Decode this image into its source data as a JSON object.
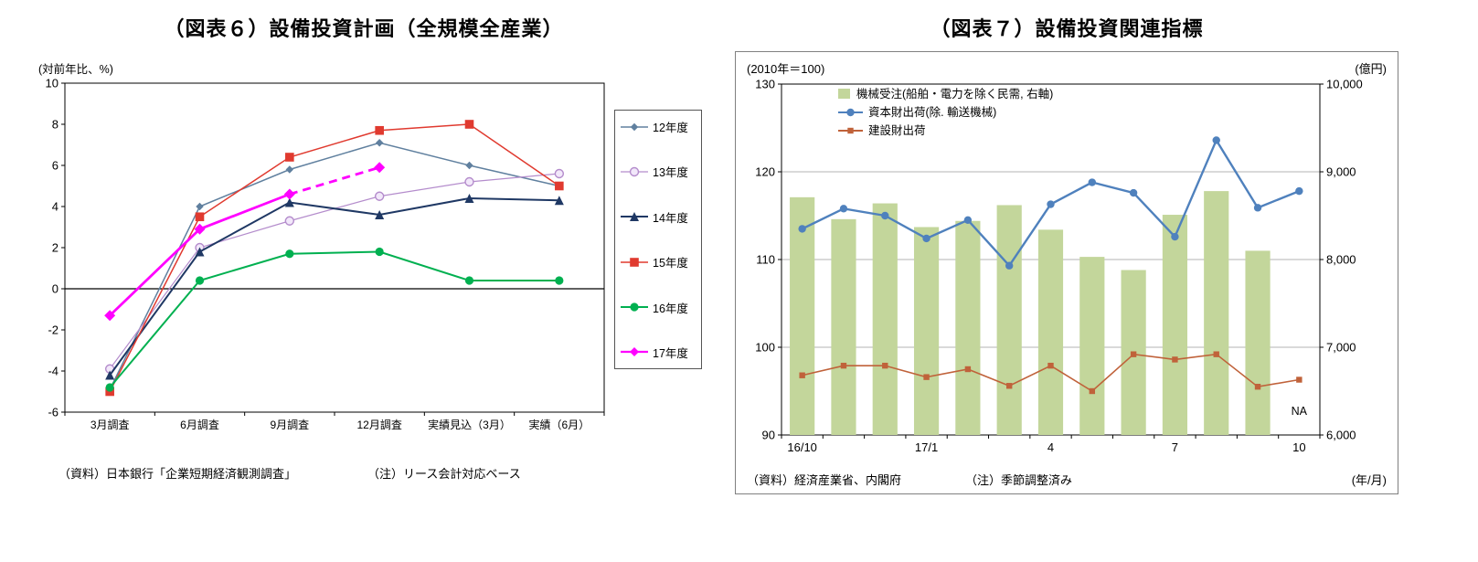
{
  "chart_data": [
    {
      "id": "figure6",
      "type": "line",
      "title": "（図表６）設備投資計画（全規模全産業）",
      "y_axis_label": "(対前年比、%)",
      "categories": [
        "3月調査",
        "6月調査",
        "9月調査",
        "12月調査",
        "実績見込（3月）",
        "実績（6月）"
      ],
      "ylim": [
        -6,
        10
      ],
      "ytick_step": 2,
      "grid": false,
      "legend_position": "right",
      "series": [
        {
          "name": "12年度",
          "color": "#60809f",
          "marker": "diamond",
          "marker_size": 4.2,
          "line_width": 1.5,
          "values": [
            -4.9,
            4.0,
            5.8,
            7.1,
            6.0,
            5.0
          ]
        },
        {
          "name": "13年度",
          "color": "#b48ccc",
          "marker": "circle-open",
          "marker_size": 4.5,
          "line_width": 1.2,
          "values": [
            -3.9,
            2.0,
            3.3,
            4.5,
            5.2,
            5.6
          ]
        },
        {
          "name": "14年度",
          "color": "#1f3864",
          "marker": "triangle",
          "marker_size": 5,
          "line_width": 2,
          "values": [
            -4.2,
            1.8,
            4.2,
            3.6,
            4.4,
            4.3
          ]
        },
        {
          "name": "15年度",
          "color": "#e03a2f",
          "marker": "square",
          "marker_size": 4.8,
          "line_width": 1.5,
          "values": [
            -5.0,
            3.5,
            6.4,
            7.7,
            8.0,
            5.0
          ]
        },
        {
          "name": "16年度",
          "color": "#00b050",
          "marker": "circle",
          "marker_size": 4.6,
          "line_width": 2,
          "values": [
            -4.8,
            0.4,
            1.7,
            1.8,
            0.4,
            0.4
          ]
        },
        {
          "name": "17年度",
          "color": "#ff00ff",
          "marker": "diamond",
          "marker_size": 6,
          "line_width": 2.8,
          "dash_from": 2,
          "values": [
            -1.3,
            2.9,
            4.6,
            5.9,
            null,
            null
          ]
        }
      ],
      "source": "（資料）日本銀行「企業短期経済観測調査」",
      "note": "（注）リース会計対応ベース"
    },
    {
      "id": "figure7",
      "type": "combo",
      "title": "（図表７）設備投資関連指標",
      "left_axis_label": "(2010年＝100)",
      "right_axis_label": "(億円)",
      "x_axis_label": "(年/月)",
      "left_ylim": [
        90,
        130
      ],
      "right_ylim": [
        6000,
        10000
      ],
      "left_ticks": [
        90,
        100,
        110,
        120,
        130
      ],
      "right_ticks": [
        "6,000",
        "7,000",
        "8,000",
        "9,000",
        "10,000"
      ],
      "grid": true,
      "legend_position": "top-left-inside",
      "x_tick_labels": [
        {
          "index": 0,
          "label": "16/10"
        },
        {
          "index": 3,
          "label": "17/1"
        },
        {
          "index": 6,
          "label": "4"
        },
        {
          "index": 9,
          "label": "7"
        },
        {
          "index": 12,
          "label": "10"
        }
      ],
      "na_label": "NA",
      "bars": {
        "name": "機械受注(船舶・電力を除く民需, 右軸)",
        "color": "#c3d69b",
        "axis": "right",
        "values": [
          8710,
          8460,
          8640,
          8370,
          8440,
          8620,
          8340,
          8030,
          7880,
          8510,
          8780,
          8100,
          null
        ]
      },
      "lines": [
        {
          "name": "資本財出荷(除. 輸送機械)",
          "color": "#4f81bd",
          "marker": "circle",
          "values": [
            113.5,
            115.8,
            115.0,
            112.4,
            114.5,
            109.3,
            116.3,
            118.8,
            117.6,
            112.6,
            123.6,
            115.9,
            117.8
          ]
        },
        {
          "name": "建設財出荷",
          "color": "#c0623a",
          "marker": "square",
          "values": [
            96.8,
            97.9,
            97.9,
            96.6,
            97.5,
            95.6,
            97.9,
            95.0,
            99.2,
            98.6,
            99.2,
            95.5,
            96.3
          ]
        }
      ],
      "source": "（資料）経済産業省、内閣府",
      "note": "（注）季節調整済み"
    }
  ]
}
